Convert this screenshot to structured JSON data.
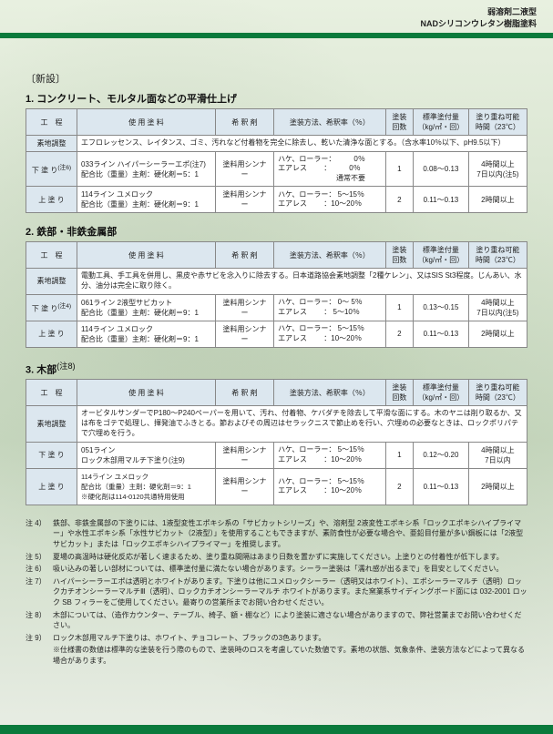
{
  "header": {
    "line1": "弱溶剤二液型",
    "line2": "NADシリコンウレタン樹脂塗料"
  },
  "new_label": "〔新設〕",
  "columns": {
    "c1": "工　程",
    "c2": "使 用 塗 料",
    "c3": "希 釈 剤",
    "c4": "塗装方法、希釈率（％）",
    "c5": "塗装\n回数",
    "c6": "標準塗付量\n（kg/㎡・回）",
    "c7": "塗り重ね可能\n時間（23℃）"
  },
  "row_labels": {
    "surface": "素地調整",
    "under": "下 塗 り",
    "top": "上 塗 り"
  },
  "sec1": {
    "title": "1. コンクリート、モルタル面などの平滑仕上げ",
    "surface": "エフロレッセンス、レイタンス、ゴミ、汚れなど付着物を完全に除去し、乾いた清浄な面とする。（含水率10％以下、pH9.5以下）",
    "under": {
      "paint": "033ライン ハイパーシーラーエポ(注7)\n配合比（重量）主剤：硬化剤＝5：1",
      "thinner": "塗料用シンナー",
      "method": "ハケ、ローラー：　　　0％\nエアレス　　 ：　　　0％\n　　　　　　　　通常不要",
      "times": "1",
      "amount": "0.08～0.13",
      "recoat": "4時間以上\n7日以内(注5)"
    },
    "top": {
      "paint": "114ライン ユメロック\n配合比（重量）主剤：硬化剤＝9：1",
      "thinner": "塗料用シンナー",
      "method": "ハケ、ローラー：  5～15％\nエアレス　　 ：10～20％",
      "times": "2",
      "amount": "0.11～0.13",
      "recoat": "2時間以上"
    }
  },
  "sec2": {
    "title": "2. 鉄部・非鉄金属部",
    "surface": "電動工具、手工具を併用し、黒皮や赤サビを念入りに除去する。日本道路協会素地調整「2種ケレン」、又はSIS St3程度。じんあい、水分、油分は完全に取り除く。",
    "under": {
      "paint": "061ライン 2液型サビカット\n配合比（重量）主剤：硬化剤＝9：1",
      "thinner": "塗料用シンナー",
      "method": "ハケ、ローラー：   0～  5％\nエアレス　　 ：  5～10％",
      "times": "1",
      "amount": "0.13～0.15",
      "recoat": "4時間以上\n7日以内(注5)"
    },
    "top": {
      "paint": "114ライン ユメロック\n配合比（重量）主剤：硬化剤＝9：1",
      "thinner": "塗料用シンナー",
      "method": "ハケ、ローラー：  5～15％\nエアレス　　 ：10～20％",
      "times": "2",
      "amount": "0.11～0.13",
      "recoat": "2時間以上"
    }
  },
  "sec3": {
    "title": "3. 木部",
    "surface": "オービタルサンダーでP180～P240ペーパーを用いて、汚れ、付着物、ケバダチを除去して平滑な面にする。木のヤニは削り取るか、又は布をゴテで処理し、揮発油でふきとる。節およびその周辺はセラックニスで節止めを行い、穴埋めの必要なときは、ロックポリパテで穴埋めを行う。",
    "under": {
      "paint": "051ライン\nロック木部用マルチ下塗り(注9)",
      "thinner": "塗料用シンナー",
      "method": "ハケ、ローラー：  5～15％\nエアレス　　 ：10～20％",
      "times": "1",
      "amount": "0.12～0.20",
      "recoat": "4時間以上\n7日以内"
    },
    "top": {
      "paint": "114ライン ユメロック\n配合比（重量）主剤：硬化剤＝9：1\n※硬化剤は114-0120共通特用使用",
      "thinner": "塗料用シンナー",
      "method": "ハケ、ローラー：  5～15％\nエアレス　　 ：10～20％",
      "times": "2",
      "amount": "0.11～0.13",
      "recoat": "2時間以上"
    }
  },
  "notes": [
    {
      "k": "注 4）",
      "t": "鉄部、非鉄金属部の下塗りには、1液型変性エポキシ系の「サビカットシリーズ」や、溶剤型 2液変性エポキシ系「ロックエポキシハイプライマー」や水性エポキシ系「水性サビカット（2液型）」を使用することもできますが、素防食性が必要な場合や、亜鉛目付量が多い鋼板には「2液型サビカット」または「ロックエポキシハイプライマー」を推奨します。"
    },
    {
      "k": "注 5）",
      "t": "夏場の高温時は硬化反応が著しく速まるため、塗り重ね間隔はあまり日数を置かずに実施してください。上塗りとの付着性が低下します。"
    },
    {
      "k": "注 6）",
      "t": "吸い込みの著しい部材については、標準塗付量に満たない場合があります。シーラー塗装は「濡れ感が出るまで」を目安としてください。"
    },
    {
      "k": "注 7）",
      "t": "ハイパーシーラーエポは透明とホワイトがあります。下塗りは他にユメロックシーラー（透明又はホワイト）、エポシーラーマルチ（透明）ロックカチオンシーラーマルチⅢ（透明）、ロックカチオンシーラーマルチ ホワイトがあります。また窯業系サイディングボード面には 032-2001 ロック SB フィラーをご使用してください。最寄りの営業所までお問い合わせください。"
    },
    {
      "k": "注 8）",
      "t": "木部については、（造作カウンター、テーブル、椅子、額・棚など）により塗装に適さない場合がありますので、弊社営業までお問い合わせください。"
    },
    {
      "k": "注 9）",
      "t": "ロック木部用マルチ下塗りは、ホワイト、チョコレート、ブラックの3色あります。"
    },
    {
      "k": "",
      "t": "※仕様書の数値は標準的な塗装を行う際のもので、塗装時のロスを考慮していた数値です。素地の状態、気象条件、塗装方法などによって異なる場合があります。"
    }
  ]
}
